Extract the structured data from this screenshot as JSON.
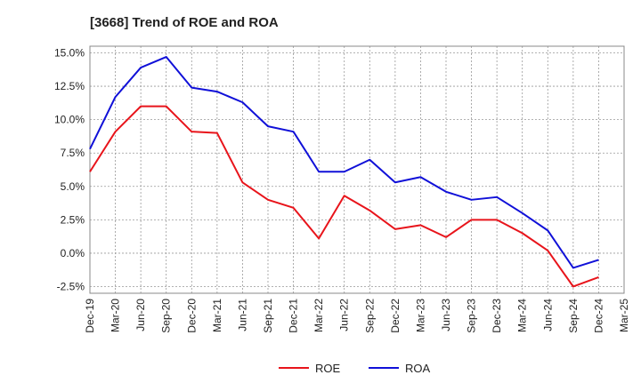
{
  "chart_data": {
    "type": "line",
    "title": "[3668]  Trend of ROE and ROA",
    "xlabel": "",
    "ylabel": "",
    "ylim": [
      -3.0,
      15.5
    ],
    "yticks": [
      15.0,
      12.5,
      10.0,
      7.5,
      5.0,
      2.5,
      0.0,
      -2.5
    ],
    "ytick_labels": [
      "15.0%",
      "12.5%",
      "10.0%",
      "7.5%",
      "5.0%",
      "2.5%",
      "0.0%",
      "-2.5%"
    ],
    "x": [
      "Dec-19",
      "Mar-20",
      "Jun-20",
      "Sep-20",
      "Dec-20",
      "Mar-21",
      "Jun-21",
      "Sep-21",
      "Dec-21",
      "Mar-22",
      "Jun-22",
      "Sep-22",
      "Dec-22",
      "Mar-23",
      "Jun-23",
      "Sep-23",
      "Dec-23",
      "Mar-24",
      "Jun-24",
      "Sep-24",
      "Dec-24"
    ],
    "xtick_labels": [
      "Dec-19",
      "Mar-20",
      "Jun-20",
      "Sep-20",
      "Dec-20",
      "Mar-21",
      "Jun-21",
      "Sep-21",
      "Dec-21",
      "Mar-22",
      "Jun-22",
      "Sep-22",
      "Dec-22",
      "Mar-23",
      "Jun-23",
      "Sep-23",
      "Dec-23",
      "Mar-24",
      "Jun-24",
      "Sep-24",
      "Dec-24",
      "Mar-25"
    ],
    "grid": true,
    "legend_position": "bottom-center",
    "series": [
      {
        "name": "ROE",
        "color": "#e8141b",
        "values": [
          6.1,
          9.1,
          11.0,
          11.0,
          9.1,
          9.0,
          5.3,
          4.0,
          3.4,
          1.1,
          4.3,
          3.2,
          1.8,
          2.1,
          1.2,
          2.5,
          2.5,
          1.5,
          0.2,
          -2.5,
          -1.8
        ]
      },
      {
        "name": "ROA",
        "color": "#1010d8",
        "values": [
          7.8,
          11.7,
          13.9,
          14.7,
          12.4,
          12.1,
          11.3,
          9.5,
          9.1,
          6.1,
          6.1,
          7.0,
          5.3,
          5.7,
          4.6,
          4.0,
          4.2,
          3.0,
          1.7,
          -1.1,
          -0.5
        ]
      }
    ]
  }
}
